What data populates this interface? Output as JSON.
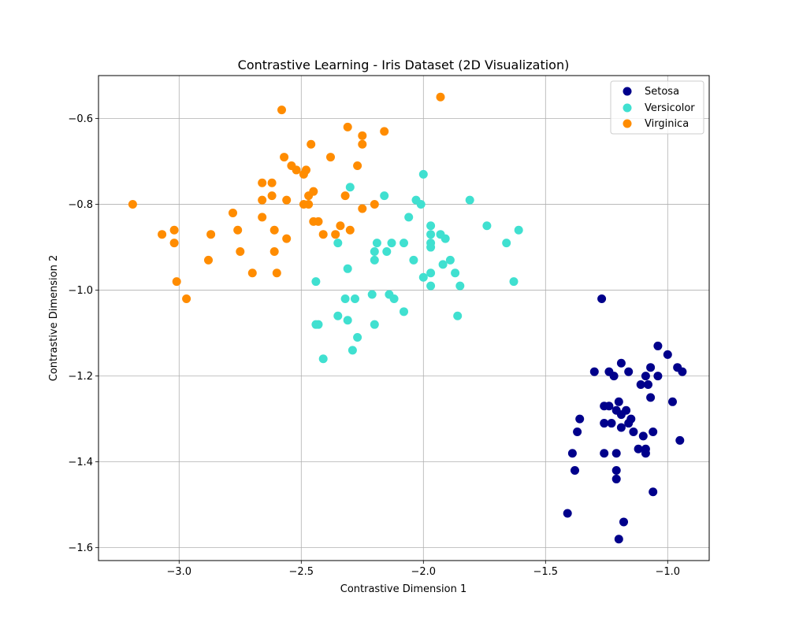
{
  "chart_data": {
    "type": "scatter",
    "title": "Contrastive Learning - Iris Dataset (2D Visualization)",
    "xlabel": "Contrastive Dimension 1",
    "ylabel": "Contrastive Dimension 2",
    "xlim": [
      -3.33,
      -0.83
    ],
    "ylim": [
      -1.63,
      -0.5
    ],
    "xticks": [
      -3.0,
      -2.5,
      -2.0,
      -1.5,
      -1.0
    ],
    "xtick_labels": [
      "−3.0",
      "−2.5",
      "−2.0",
      "−1.5",
      "−1.0"
    ],
    "yticks": [
      -1.6,
      -1.4,
      -1.2,
      -1.0,
      -0.8,
      -0.6
    ],
    "ytick_labels": [
      "−1.6",
      "−1.4",
      "−1.2",
      "−1.0",
      "−0.8",
      "−0.6"
    ],
    "grid": true,
    "legend_position": "top-right",
    "series": [
      {
        "name": "Setosa",
        "color": "#00008b",
        "points": [
          [
            -1.27,
            -1.02
          ],
          [
            -1.04,
            -1.13
          ],
          [
            -1.0,
            -1.15
          ],
          [
            -1.3,
            -1.19
          ],
          [
            -1.24,
            -1.19
          ],
          [
            -1.22,
            -1.2
          ],
          [
            -1.19,
            -1.17
          ],
          [
            -1.16,
            -1.19
          ],
          [
            -1.07,
            -1.18
          ],
          [
            -0.96,
            -1.18
          ],
          [
            -0.94,
            -1.19
          ],
          [
            -1.09,
            -1.2
          ],
          [
            -1.04,
            -1.2
          ],
          [
            -1.11,
            -1.22
          ],
          [
            -1.08,
            -1.22
          ],
          [
            -1.07,
            -1.25
          ],
          [
            -0.98,
            -1.26
          ],
          [
            -1.2,
            -1.26
          ],
          [
            -1.26,
            -1.27
          ],
          [
            -1.24,
            -1.27
          ],
          [
            -1.17,
            -1.28
          ],
          [
            -1.21,
            -1.28
          ],
          [
            -1.19,
            -1.29
          ],
          [
            -1.15,
            -1.3
          ],
          [
            -1.36,
            -1.3
          ],
          [
            -1.26,
            -1.31
          ],
          [
            -1.23,
            -1.31
          ],
          [
            -1.16,
            -1.31
          ],
          [
            -1.19,
            -1.32
          ],
          [
            -1.14,
            -1.33
          ],
          [
            -1.37,
            -1.33
          ],
          [
            -1.1,
            -1.34
          ],
          [
            -1.06,
            -1.33
          ],
          [
            -0.95,
            -1.35
          ],
          [
            -1.12,
            -1.37
          ],
          [
            -1.09,
            -1.37
          ],
          [
            -1.21,
            -1.38
          ],
          [
            -1.26,
            -1.38
          ],
          [
            -1.39,
            -1.38
          ],
          [
            -1.09,
            -1.38
          ],
          [
            -1.38,
            -1.42
          ],
          [
            -1.21,
            -1.42
          ],
          [
            -1.21,
            -1.44
          ],
          [
            -1.06,
            -1.47
          ],
          [
            -1.41,
            -1.52
          ],
          [
            -1.18,
            -1.54
          ],
          [
            -1.2,
            -1.58
          ]
        ]
      },
      {
        "name": "Versicolor",
        "color": "#40e0d0",
        "points": [
          [
            -2.0,
            -0.73
          ],
          [
            -2.3,
            -0.76
          ],
          [
            -2.16,
            -0.78
          ],
          [
            -2.03,
            -0.79
          ],
          [
            -1.81,
            -0.79
          ],
          [
            -2.01,
            -0.8
          ],
          [
            -2.06,
            -0.83
          ],
          [
            -1.74,
            -0.85
          ],
          [
            -1.97,
            -0.85
          ],
          [
            -1.97,
            -0.87
          ],
          [
            -1.93,
            -0.87
          ],
          [
            -1.61,
            -0.86
          ],
          [
            -1.91,
            -0.88
          ],
          [
            -2.19,
            -0.89
          ],
          [
            -2.13,
            -0.89
          ],
          [
            -2.08,
            -0.89
          ],
          [
            -1.97,
            -0.89
          ],
          [
            -2.35,
            -0.89
          ],
          [
            -1.66,
            -0.89
          ],
          [
            -1.97,
            -0.9
          ],
          [
            -2.15,
            -0.91
          ],
          [
            -2.2,
            -0.91
          ],
          [
            -2.04,
            -0.93
          ],
          [
            -2.2,
            -0.93
          ],
          [
            -1.89,
            -0.93
          ],
          [
            -1.92,
            -0.94
          ],
          [
            -2.31,
            -0.95
          ],
          [
            -1.87,
            -0.96
          ],
          [
            -1.97,
            -0.96
          ],
          [
            -2.0,
            -0.97
          ],
          [
            -2.44,
            -0.98
          ],
          [
            -1.63,
            -0.98
          ],
          [
            -1.85,
            -0.99
          ],
          [
            -1.97,
            -0.99
          ],
          [
            -2.21,
            -1.01
          ],
          [
            -2.14,
            -1.01
          ],
          [
            -2.12,
            -1.02
          ],
          [
            -2.32,
            -1.02
          ],
          [
            -2.28,
            -1.02
          ],
          [
            -2.08,
            -1.05
          ],
          [
            -2.35,
            -1.06
          ],
          [
            -1.86,
            -1.06
          ],
          [
            -2.31,
            -1.07
          ],
          [
            -2.2,
            -1.08
          ],
          [
            -2.44,
            -1.08
          ],
          [
            -2.43,
            -1.08
          ],
          [
            -2.27,
            -1.11
          ],
          [
            -2.29,
            -1.14
          ],
          [
            -2.41,
            -1.16
          ]
        ]
      },
      {
        "name": "Virginica",
        "color": "#ff8c00",
        "points": [
          [
            -1.93,
            -0.55
          ],
          [
            -2.58,
            -0.58
          ],
          [
            -2.31,
            -0.62
          ],
          [
            -2.25,
            -0.64
          ],
          [
            -2.16,
            -0.63
          ],
          [
            -2.25,
            -0.66
          ],
          [
            -2.46,
            -0.66
          ],
          [
            -2.38,
            -0.69
          ],
          [
            -2.57,
            -0.69
          ],
          [
            -2.54,
            -0.71
          ],
          [
            -2.52,
            -0.72
          ],
          [
            -2.27,
            -0.71
          ],
          [
            -2.48,
            -0.72
          ],
          [
            -2.49,
            -0.73
          ],
          [
            -2.66,
            -0.75
          ],
          [
            -2.62,
            -0.75
          ],
          [
            -2.45,
            -0.77
          ],
          [
            -2.47,
            -0.78
          ],
          [
            -2.62,
            -0.78
          ],
          [
            -2.66,
            -0.79
          ],
          [
            -2.56,
            -0.79
          ],
          [
            -2.32,
            -0.78
          ],
          [
            -2.2,
            -0.8
          ],
          [
            -2.25,
            -0.81
          ],
          [
            -2.49,
            -0.8
          ],
          [
            -2.47,
            -0.8
          ],
          [
            -3.19,
            -0.8
          ],
          [
            -2.78,
            -0.82
          ],
          [
            -2.66,
            -0.83
          ],
          [
            -2.43,
            -0.84
          ],
          [
            -2.45,
            -0.84
          ],
          [
            -2.34,
            -0.85
          ],
          [
            -2.3,
            -0.86
          ],
          [
            -2.61,
            -0.86
          ],
          [
            -2.36,
            -0.87
          ],
          [
            -2.41,
            -0.87
          ],
          [
            -2.76,
            -0.86
          ],
          [
            -3.02,
            -0.86
          ],
          [
            -2.87,
            -0.87
          ],
          [
            -3.07,
            -0.87
          ],
          [
            -2.56,
            -0.88
          ],
          [
            -3.02,
            -0.89
          ],
          [
            -2.61,
            -0.91
          ],
          [
            -2.75,
            -0.91
          ],
          [
            -2.88,
            -0.93
          ],
          [
            -2.7,
            -0.96
          ],
          [
            -2.6,
            -0.96
          ],
          [
            -3.01,
            -0.98
          ],
          [
            -2.97,
            -1.02
          ]
        ]
      }
    ]
  }
}
